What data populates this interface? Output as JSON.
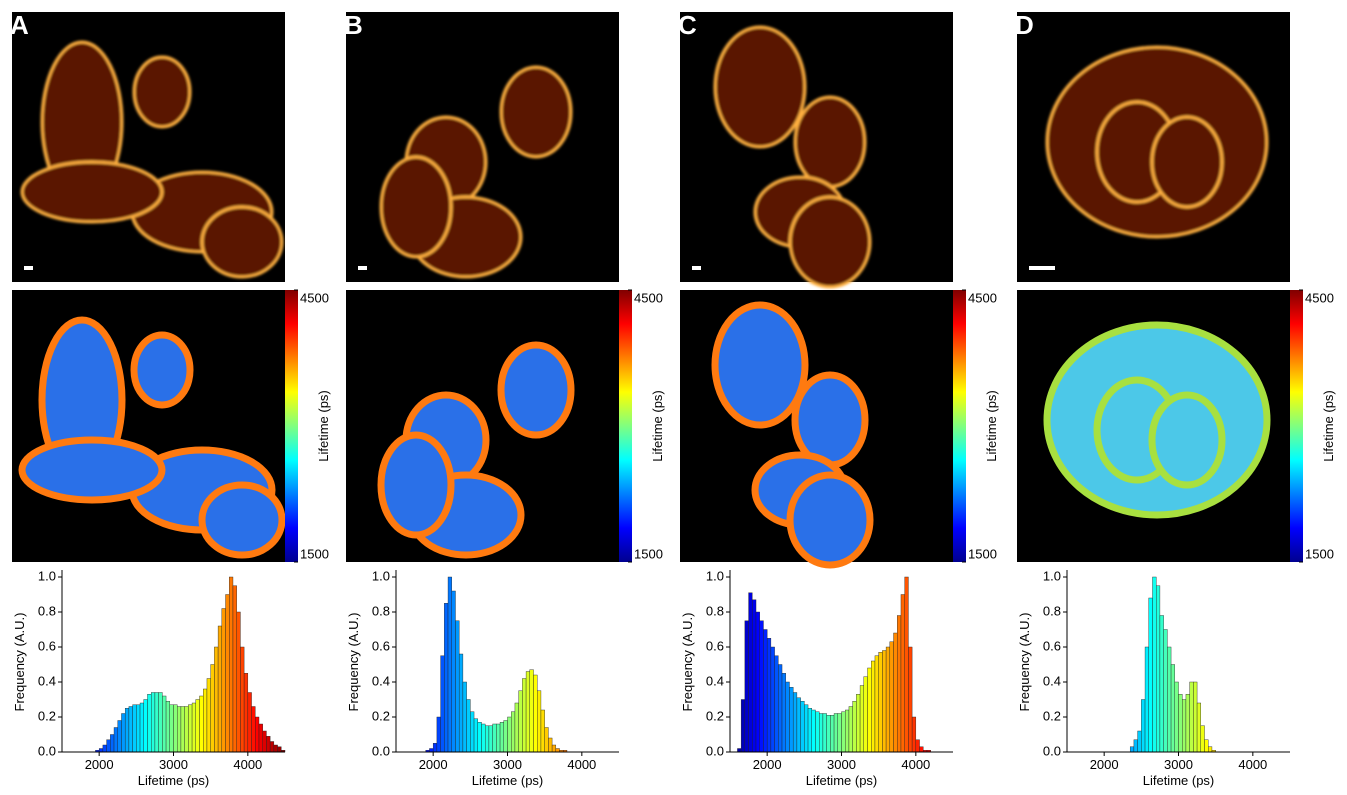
{
  "chart_data": [
    {
      "type": "histogram",
      "panel_label": "A",
      "colormap": "jet",
      "colorbar_lim": [
        1500,
        4500
      ],
      "colorbar_ticks": [
        1500,
        4500
      ],
      "colorbar_label": "Lifetime (ps)",
      "xlabel": "Lifetime (ps)",
      "ylabel": "Frequency (A.U.)",
      "xlim": [
        1500,
        4500
      ],
      "xticks": [
        2000,
        3000,
        4000
      ],
      "ylim": [
        0,
        1.04
      ],
      "yticks": [
        {
          "value": 0,
          "label": "0.0"
        },
        0.2,
        0.4,
        0.6,
        0.8,
        {
          "value": 1,
          "label": "1.0"
        }
      ],
      "bins": [
        1900,
        1950,
        2000,
        2050,
        2100,
        2150,
        2200,
        2250,
        2300,
        2350,
        2400,
        2450,
        2500,
        2550,
        2600,
        2650,
        2700,
        2750,
        2800,
        2850,
        2900,
        2950,
        3000,
        3050,
        3100,
        3150,
        3200,
        3250,
        3300,
        3350,
        3400,
        3450,
        3500,
        3550,
        3600,
        3650,
        3700,
        3750,
        3800,
        3850,
        3900,
        3950,
        4000,
        4050,
        4100,
        4150,
        4200,
        4250,
        4300,
        4350,
        4400,
        4450,
        4500
      ],
      "values": [
        0,
        0.01,
        0.02,
        0.04,
        0.07,
        0.1,
        0.14,
        0.18,
        0.22,
        0.25,
        0.26,
        0.27,
        0.27,
        0.28,
        0.3,
        0.33,
        0.34,
        0.34,
        0.34,
        0.32,
        0.29,
        0.27,
        0.27,
        0.26,
        0.26,
        0.26,
        0.27,
        0.28,
        0.3,
        0.32,
        0.36,
        0.42,
        0.5,
        0.6,
        0.72,
        0.82,
        0.9,
        1.0,
        0.95,
        0.8,
        0.6,
        0.45,
        0.34,
        0.26,
        0.2,
        0.16,
        0.12,
        0.09,
        0.06,
        0.04,
        0.03,
        0.01
      ]
    },
    {
      "type": "histogram",
      "panel_label": "B",
      "colormap": "jet",
      "colorbar_lim": [
        1500,
        4500
      ],
      "colorbar_ticks": [
        1500,
        4500
      ],
      "colorbar_label": "Lifetime (ps)",
      "xlabel": "Lifetime (ps)",
      "ylabel": "Frequency (A.U.)",
      "xlim": [
        1500,
        4500
      ],
      "xticks": [
        2000,
        3000,
        4000
      ],
      "ylim": [
        0,
        1.04
      ],
      "yticks": [
        {
          "value": 0,
          "label": "0.0"
        },
        0.2,
        0.4,
        0.6,
        0.8,
        {
          "value": 1,
          "label": "1.0"
        }
      ],
      "bins": [
        1900,
        1950,
        2000,
        2050,
        2100,
        2150,
        2200,
        2250,
        2300,
        2350,
        2400,
        2450,
        2500,
        2550,
        2600,
        2650,
        2700,
        2750,
        2800,
        2850,
        2900,
        2950,
        3000,
        3050,
        3100,
        3150,
        3200,
        3250,
        3300,
        3350,
        3400,
        3450,
        3500,
        3550,
        3600,
        3650,
        3700,
        3750,
        3800,
        3850,
        3900
      ],
      "values": [
        0.01,
        0.02,
        0.05,
        0.2,
        0.55,
        0.85,
        1.0,
        0.92,
        0.75,
        0.56,
        0.4,
        0.3,
        0.23,
        0.19,
        0.17,
        0.16,
        0.15,
        0.15,
        0.16,
        0.16,
        0.17,
        0.18,
        0.2,
        0.23,
        0.28,
        0.35,
        0.42,
        0.46,
        0.47,
        0.44,
        0.35,
        0.24,
        0.14,
        0.08,
        0.04,
        0.02,
        0.01,
        0.01,
        0,
        0
      ]
    },
    {
      "type": "histogram",
      "panel_label": "C",
      "colormap": "jet",
      "colorbar_lim": [
        1500,
        4500
      ],
      "colorbar_ticks": [
        1500,
        4500
      ],
      "colorbar_label": "Lifetime (ps)",
      "xlabel": "Lifetime (ps)",
      "ylabel": "Frequency (A.U.)",
      "xlim": [
        1500,
        4500
      ],
      "xticks": [
        2000,
        3000,
        4000
      ],
      "ylim": [
        0,
        1.04
      ],
      "yticks": [
        {
          "value": 0,
          "label": "0.0"
        },
        0.2,
        0.4,
        0.6,
        0.8,
        {
          "value": 1,
          "label": "1.0"
        }
      ],
      "bins": [
        1600,
        1650,
        1700,
        1750,
        1800,
        1850,
        1900,
        1950,
        2000,
        2050,
        2100,
        2150,
        2200,
        2250,
        2300,
        2350,
        2400,
        2450,
        2500,
        2550,
        2600,
        2650,
        2700,
        2750,
        2800,
        2850,
        2900,
        2950,
        3000,
        3050,
        3100,
        3150,
        3200,
        3250,
        3300,
        3350,
        3400,
        3450,
        3500,
        3550,
        3600,
        3650,
        3700,
        3750,
        3800,
        3850,
        3900,
        3950,
        4000,
        4050,
        4100,
        4150,
        4200
      ],
      "values": [
        0.02,
        0.3,
        0.75,
        0.91,
        0.87,
        0.8,
        0.75,
        0.7,
        0.65,
        0.6,
        0.55,
        0.5,
        0.45,
        0.4,
        0.37,
        0.34,
        0.31,
        0.29,
        0.27,
        0.25,
        0.24,
        0.23,
        0.22,
        0.22,
        0.21,
        0.21,
        0.22,
        0.22,
        0.23,
        0.24,
        0.26,
        0.29,
        0.33,
        0.38,
        0.43,
        0.48,
        0.52,
        0.55,
        0.57,
        0.58,
        0.6,
        0.63,
        0.68,
        0.78,
        0.9,
        1.0,
        0.6,
        0.2,
        0.07,
        0.03,
        0.01,
        0.01
      ]
    },
    {
      "type": "histogram",
      "panel_label": "D",
      "colormap": "jet",
      "colorbar_lim": [
        1500,
        4500
      ],
      "colorbar_ticks": [
        1500,
        4500
      ],
      "colorbar_label": "Lifetime (ps)",
      "xlabel": "Lifetime (ps)",
      "ylabel": "Frequency (A.U.)",
      "xlim": [
        1500,
        4500
      ],
      "xticks": [
        2000,
        3000,
        4000
      ],
      "ylim": [
        0,
        1.04
      ],
      "yticks": [
        {
          "value": 0,
          "label": "0.0"
        },
        0.2,
        0.4,
        0.6,
        0.8,
        {
          "value": 1,
          "label": "1.0"
        }
      ],
      "bins": [
        2350,
        2400,
        2450,
        2500,
        2550,
        2600,
        2650,
        2700,
        2750,
        2800,
        2850,
        2900,
        2950,
        3000,
        3050,
        3100,
        3150,
        3200,
        3250,
        3300,
        3350,
        3400,
        3450,
        3500
      ],
      "values": [
        0.03,
        0.07,
        0.12,
        0.3,
        0.6,
        0.88,
        1.0,
        0.95,
        0.78,
        0.7,
        0.6,
        0.5,
        0.4,
        0.33,
        0.3,
        0.33,
        0.4,
        0.4,
        0.28,
        0.15,
        0.07,
        0.03,
        0.01
      ]
    }
  ]
}
